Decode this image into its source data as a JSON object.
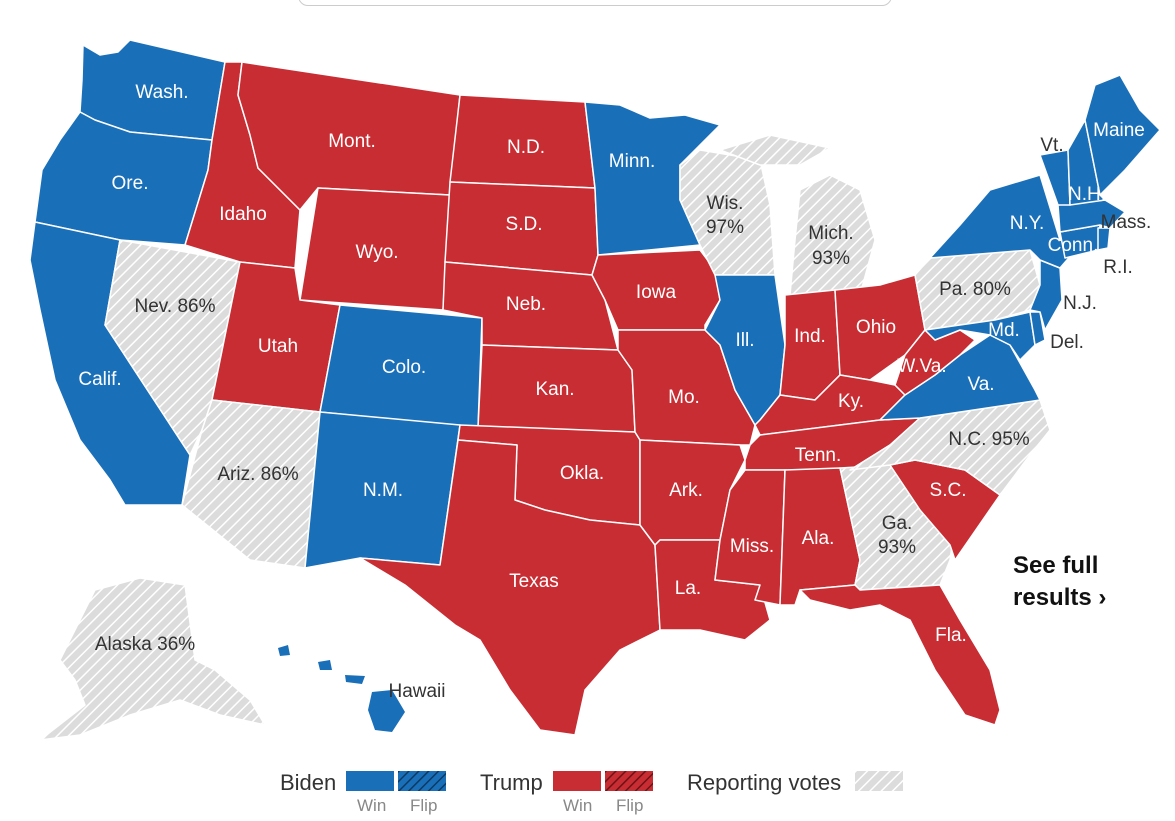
{
  "colors": {
    "biden": "#1a6fb9",
    "trump": "#c72d32",
    "reporting": "#dcdcdc",
    "reporting_hatch": "#ffffff"
  },
  "labels": {
    "wash": "Wash.",
    "ore": "Ore.",
    "calif": "Calif.",
    "nev": "Nev. 86%",
    "idaho": "Idaho",
    "mont": "Mont.",
    "wyo": "Wyo.",
    "utah": "Utah",
    "ariz": "Ariz. 86%",
    "colo": "Colo.",
    "nm": "N.M.",
    "nd": "N.D.",
    "sd": "S.D.",
    "neb": "Neb.",
    "kan": "Kan.",
    "okla": "Okla.",
    "texas": "Texas",
    "minn": "Minn.",
    "iowa": "Iowa",
    "mo": "Mo.",
    "ark": "Ark.",
    "la": "La.",
    "wis_name": "Wis.",
    "wis_pct": "97%",
    "ill": "Ill.",
    "mich_name": "Mich.",
    "mich_pct": "93%",
    "ind": "Ind.",
    "ohio": "Ohio",
    "ky": "Ky.",
    "tenn": "Tenn.",
    "miss": "Miss.",
    "ala": "Ala.",
    "ga_name": "Ga.",
    "ga_pct": "93%",
    "fla": "Fla.",
    "sc": "S.C.",
    "nc": "N.C. 95%",
    "va": "Va.",
    "wva": "W.Va.",
    "pa": "Pa. 80%",
    "ny": "N.Y.",
    "vt": "Vt.",
    "nh": "N.H.",
    "maine": "Maine",
    "mass": "Mass.",
    "conn": "Conn.",
    "ri": "R.I.",
    "nj": "N.J.",
    "del": "Del.",
    "md": "Md.",
    "alaska": "Alaska 36%",
    "hawaii": "Hawaii"
  },
  "see_full": {
    "line1": "See full",
    "line2": "results ›"
  },
  "legend": {
    "biden": "Biden",
    "trump": "Trump",
    "reporting": "Reporting votes",
    "win": "Win",
    "flip": "Flip"
  }
}
